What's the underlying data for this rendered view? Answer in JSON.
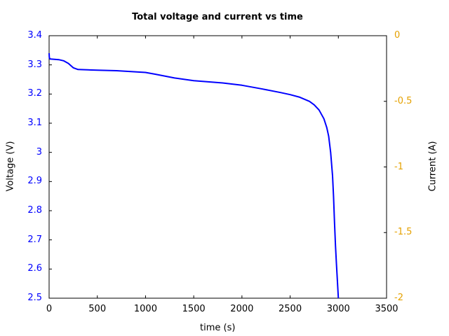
{
  "chart_data": {
    "type": "line",
    "title": "Total voltage and current vs time",
    "xlabel": "time (s)",
    "ylabel": "Voltage (V)",
    "y2label": "Current (A)",
    "xlim": [
      0,
      3500
    ],
    "ylim": [
      2.5,
      3.4
    ],
    "y2lim": [
      -2,
      0
    ],
    "xticks": [
      "0",
      "500",
      "1000",
      "1500",
      "2000",
      "2500",
      "3000",
      "3500"
    ],
    "yticks": [
      "3.4",
      "3.3",
      "3.2",
      "3.1",
      "3",
      "2.9",
      "2.8",
      "2.7",
      "2.6",
      "2.5"
    ],
    "y2ticks": [
      "0",
      "-0.5",
      "-1",
      "-1.5",
      "-2"
    ],
    "grid": false,
    "legend": null,
    "colors": {
      "voltage": "#0000ff",
      "current_axis": "#e5a100",
      "axes": "#000000"
    },
    "series": [
      {
        "name": "Voltage",
        "axis": "left",
        "color": "#0000ff",
        "x": [
          0,
          2,
          10,
          100,
          150,
          200,
          250,
          300,
          400,
          500,
          700,
          1000,
          1100,
          1300,
          1500,
          1800,
          2000,
          2200,
          2400,
          2500,
          2600,
          2700,
          2750,
          2800,
          2850,
          2880,
          2900,
          2920,
          2940,
          2950,
          2960,
          2970,
          2980,
          3000
        ],
        "values": [
          3.34,
          3.325,
          3.32,
          3.318,
          3.314,
          3.305,
          3.29,
          3.284,
          3.283,
          3.282,
          3.28,
          3.274,
          3.268,
          3.255,
          3.246,
          3.238,
          3.23,
          3.218,
          3.205,
          3.198,
          3.189,
          3.175,
          3.163,
          3.145,
          3.115,
          3.085,
          3.055,
          3.0,
          2.92,
          2.85,
          2.76,
          2.68,
          2.62,
          2.5
        ]
      }
    ]
  }
}
